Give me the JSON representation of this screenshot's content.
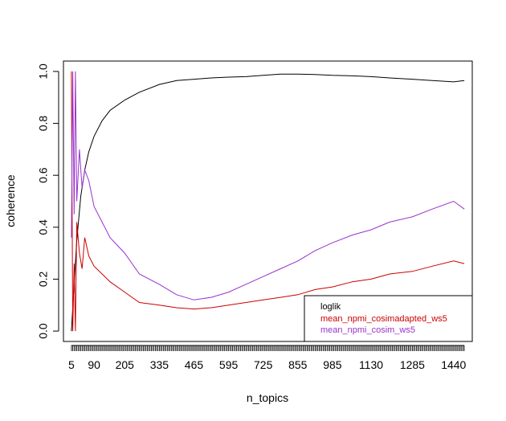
{
  "chart_data": {
    "type": "line",
    "title": "",
    "xlabel": "n_topics",
    "ylabel": "coherence",
    "xlim": [
      -25,
      1510
    ],
    "ylim": [
      -0.04,
      1.04
    ],
    "x_ticks": [
      5,
      90,
      205,
      335,
      465,
      595,
      725,
      855,
      985,
      1130,
      1285,
      1440
    ],
    "x_tick_labels": [
      "5",
      "90",
      "205",
      "335",
      "465",
      "595",
      "725",
      "855",
      "985",
      "1130",
      "1285",
      "1440"
    ],
    "x_minor_tick_step": 5,
    "x_range": [
      5,
      1480
    ],
    "y_ticks": [
      0.0,
      0.2,
      0.4,
      0.6,
      0.8,
      1.0
    ],
    "y_tick_labels": [
      "0.0",
      "0.2",
      "0.4",
      "0.6",
      "0.8",
      "1.0"
    ],
    "grid": false,
    "legend_position": "bottom-right",
    "series": [
      {
        "name": "loglik",
        "color": "#000000",
        "x": [
          5,
          15,
          25,
          40,
          55,
          70,
          90,
          120,
          150,
          205,
          260,
          335,
          400,
          465,
          530,
          595,
          660,
          725,
          790,
          855,
          920,
          985,
          1060,
          1130,
          1200,
          1285,
          1360,
          1440,
          1480
        ],
        "values": [
          0.0,
          0.18,
          0.35,
          0.52,
          0.62,
          0.69,
          0.75,
          0.81,
          0.85,
          0.89,
          0.92,
          0.95,
          0.965,
          0.97,
          0.975,
          0.978,
          0.98,
          0.985,
          0.99,
          0.99,
          0.988,
          0.985,
          0.983,
          0.98,
          0.975,
          0.97,
          0.965,
          0.96,
          0.965
        ]
      },
      {
        "name": "mean_npmi_cosimadapted_ws5",
        "color": "#cc0000",
        "x": [
          5,
          10,
          15,
          20,
          25,
          35,
          45,
          55,
          70,
          90,
          120,
          150,
          205,
          260,
          335,
          400,
          465,
          530,
          595,
          660,
          725,
          790,
          855,
          920,
          985,
          1060,
          1130,
          1200,
          1285,
          1360,
          1440,
          1480
        ],
        "values": [
          1.0,
          0.0,
          0.26,
          0.0,
          0.42,
          0.3,
          0.24,
          0.36,
          0.29,
          0.25,
          0.22,
          0.19,
          0.15,
          0.11,
          0.1,
          0.09,
          0.085,
          0.09,
          0.1,
          0.11,
          0.12,
          0.13,
          0.14,
          0.16,
          0.17,
          0.19,
          0.2,
          0.22,
          0.23,
          0.25,
          0.27,
          0.26
        ]
      },
      {
        "name": "mean_npmi_cosim_ws5",
        "color": "#9932cc",
        "x": [
          5,
          10,
          15,
          20,
          25,
          35,
          45,
          55,
          70,
          90,
          120,
          150,
          205,
          260,
          335,
          400,
          465,
          530,
          595,
          660,
          725,
          790,
          855,
          920,
          985,
          1060,
          1130,
          1200,
          1285,
          1360,
          1440,
          1480
        ],
        "values": [
          0.36,
          1.0,
          0.45,
          1.0,
          0.5,
          0.7,
          0.55,
          0.62,
          0.58,
          0.48,
          0.42,
          0.36,
          0.3,
          0.22,
          0.18,
          0.14,
          0.12,
          0.13,
          0.15,
          0.18,
          0.21,
          0.24,
          0.27,
          0.31,
          0.34,
          0.37,
          0.39,
          0.42,
          0.44,
          0.47,
          0.5,
          0.47
        ]
      }
    ],
    "legend": [
      {
        "label": "loglik",
        "color": "#000000"
      },
      {
        "label": "mean_npmi_cosimadapted_ws5",
        "color": "#cc0000"
      },
      {
        "label": "mean_npmi_cosim_ws5",
        "color": "#9932cc"
      }
    ]
  }
}
